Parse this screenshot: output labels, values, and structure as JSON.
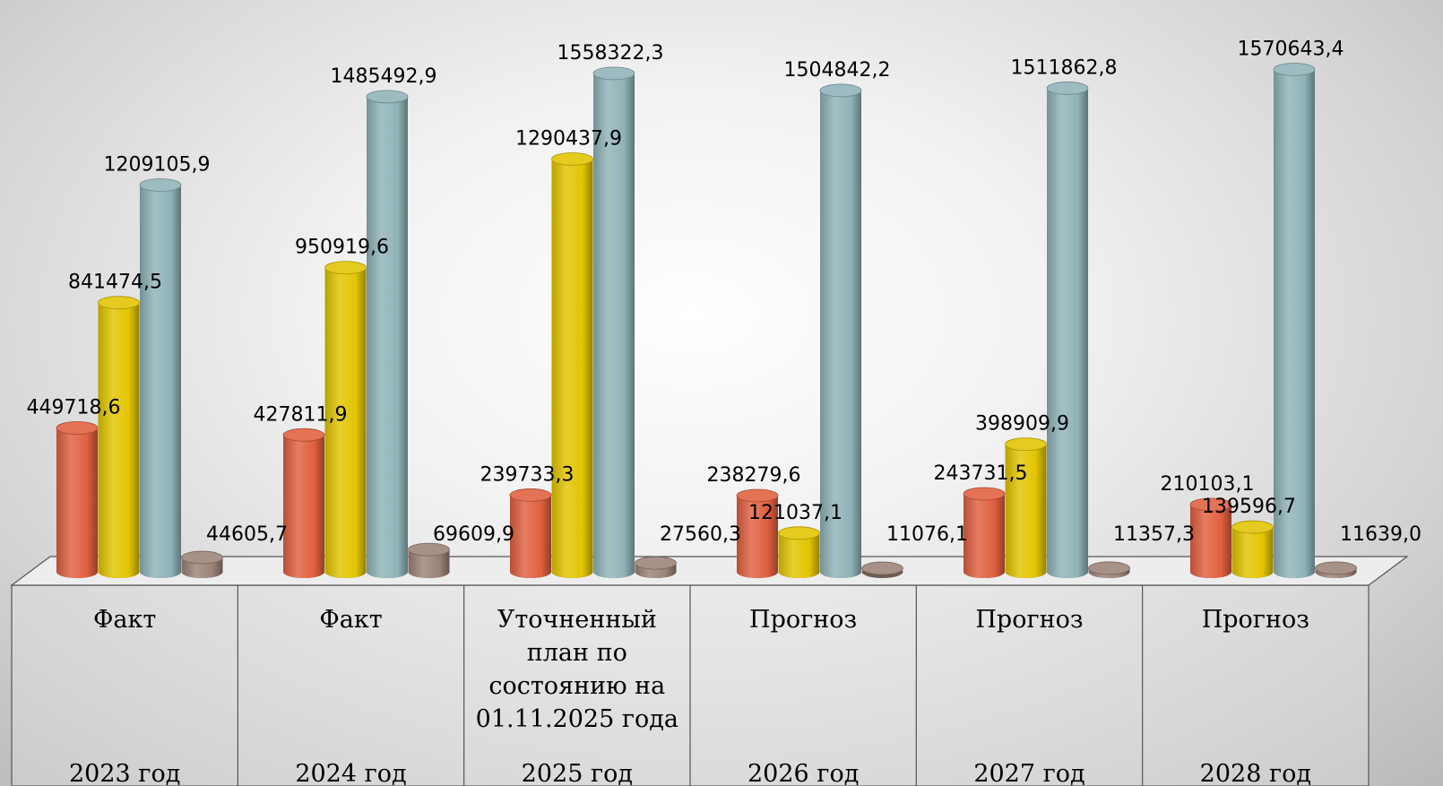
{
  "chart_data": {
    "type": "bar",
    "categories": [
      {
        "kind": [
          "Факт"
        ],
        "year": "2023 год"
      },
      {
        "kind": [
          "Факт"
        ],
        "year": "2024 год"
      },
      {
        "kind": [
          "Уточненный",
          "план по",
          "состоянию на",
          "01.11.2025 года"
        ],
        "year": "2025 год"
      },
      {
        "kind": [
          "Прогноз"
        ],
        "year": "2026 год"
      },
      {
        "kind": [
          "Прогноз"
        ],
        "year": "2027 год"
      },
      {
        "kind": [
          "Прогноз"
        ],
        "year": "2028 год"
      }
    ],
    "series": [
      {
        "color": "#e0603f",
        "values": [
          449718.6,
          427811.9,
          239733.3,
          238279.6,
          243731.5,
          210103.1
        ],
        "labels": [
          "449718,6",
          "427811,9",
          "239733,3",
          "238279,6",
          "243731,5",
          "210103,1"
        ]
      },
      {
        "color": "#e2c400",
        "values": [
          841474.5,
          950919.6,
          1290437.9,
          121037.1,
          398909.9,
          139596.7
        ],
        "labels": [
          "841474,5",
          "950919,6",
          "1290437,9",
          "121037,1",
          "398909,9",
          "139596,7"
        ]
      },
      {
        "color": "#8fb3b8",
        "values": [
          1209105.9,
          1485492.9,
          1558322.3,
          1504842.2,
          1511862.8,
          1570643.4
        ],
        "labels": [
          "1209105,9",
          "1485492,9",
          "1558322,3",
          "1504842,2",
          "1511862,8",
          "1570643,4"
        ]
      },
      {
        "color": "#9c8378",
        "values": [
          44605.7,
          69609.9,
          27560.3,
          11076.1,
          11357.3,
          11639.0
        ],
        "labels": [
          "44605,7",
          "69609,9",
          "27560,3",
          "11076,1",
          "11357,3",
          "11639,0"
        ]
      }
    ],
    "ylim": [
      0,
      1600000
    ],
    "grid": false,
    "legend": "none",
    "style": "3d-cylinder"
  }
}
